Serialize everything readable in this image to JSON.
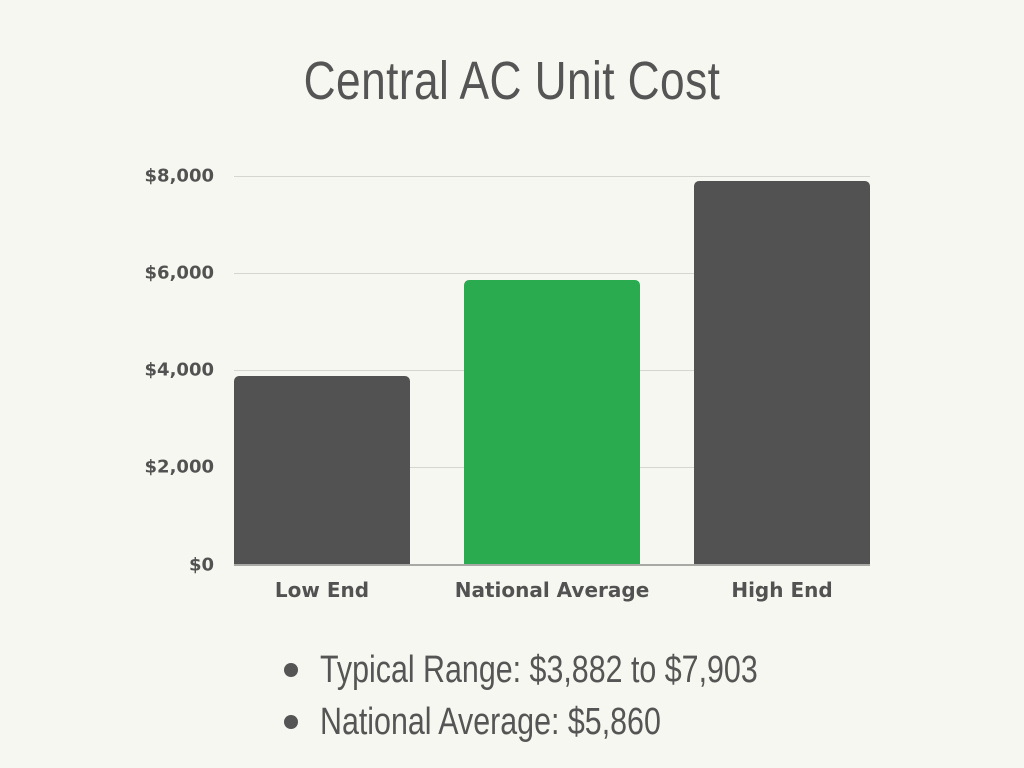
{
  "title": "Central AC Unit Cost",
  "colors": {
    "background": "#f7f7f1",
    "bar_default": "#525252",
    "bar_highlight": "#2aab50",
    "text": "#525252",
    "gridline": "#d6d6d0"
  },
  "axis": {
    "y_ticks": [
      "$8,000",
      "$6,000",
      "$4,000",
      "$2,000",
      "$0"
    ]
  },
  "bars": [
    {
      "label": "Low End",
      "value": 3882,
      "color": "#525252"
    },
    {
      "label": "National Average",
      "value": 5860,
      "color": "#2aab50"
    },
    {
      "label": "High End",
      "value": 7903,
      "color": "#525252"
    }
  ],
  "notes": [
    "Typical Range: $3,882 to $7,903",
    "National Average: $5,860"
  ],
  "chart_data": {
    "type": "bar",
    "title": "Central AC Unit Cost",
    "categories": [
      "Low End",
      "National Average",
      "High End"
    ],
    "values": [
      3882,
      5860,
      7903
    ],
    "xlabel": "",
    "ylabel": "",
    "ylim": [
      0,
      8000
    ],
    "y_ticks": [
      0,
      2000,
      4000,
      6000,
      8000
    ],
    "y_tick_labels": [
      "$0",
      "$2,000",
      "$4,000",
      "$6,000",
      "$8,000"
    ],
    "grid": true,
    "legend": null,
    "bar_colors": [
      "#525252",
      "#2aab50",
      "#525252"
    ],
    "annotations": [
      "Typical Range: $3,882 to $7,903",
      "National Average: $5,860"
    ]
  }
}
